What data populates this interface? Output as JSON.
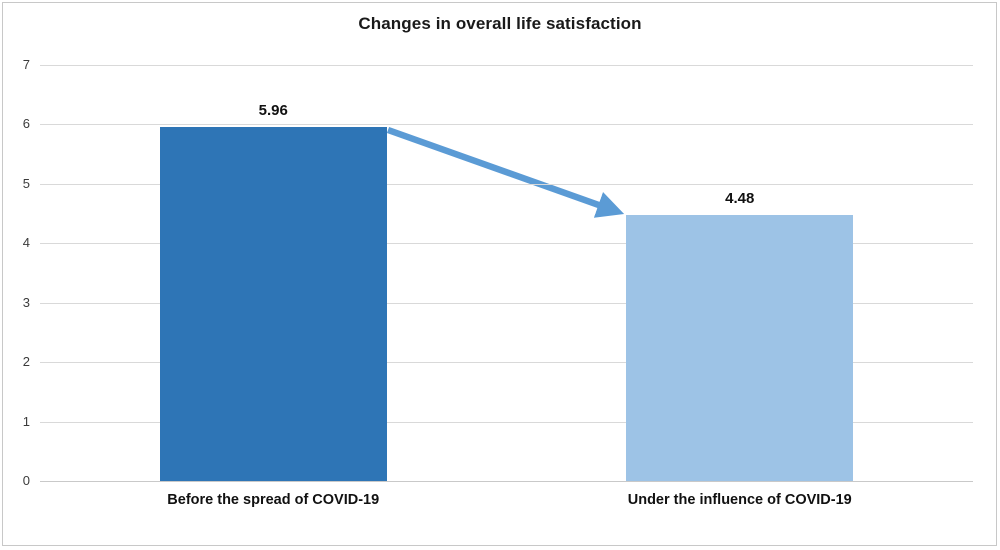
{
  "chart_data": {
    "type": "bar",
    "title": "Changes in overall life satisfaction",
    "categories": [
      "Before the spread of COVID-19",
      "Under the influence of COVID-19"
    ],
    "values": [
      5.96,
      4.48
    ],
    "value_labels": [
      "5.96",
      "4.48"
    ],
    "bar_colors": [
      "#2E75B6",
      "#9DC3E6"
    ],
    "xlabel": "",
    "ylabel": "",
    "ylim": [
      0,
      7
    ],
    "yticks": [
      0,
      1,
      2,
      3,
      4,
      5,
      6,
      7
    ],
    "grid": true,
    "gridline_color": "#D9D9D9",
    "legend": "none",
    "annotation": {
      "type": "arrow",
      "description": "arrow from top of first bar to top of second bar indicating decline",
      "from_category": 0,
      "to_category": 1,
      "color": "#5B9BD5"
    },
    "frame_border_color": "#C8C8C8",
    "background_color": "#FFFFFF"
  }
}
